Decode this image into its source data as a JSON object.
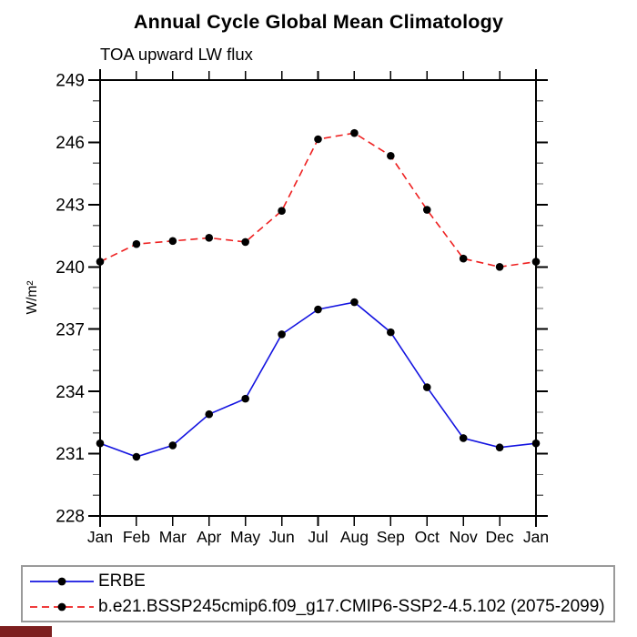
{
  "chart_data": {
    "type": "line",
    "title": "Annual Cycle Global Mean Climatology",
    "subtitle": "TOA upward LW flux",
    "ylabel": "W/m²",
    "xlabel": "",
    "ylim": [
      228,
      249
    ],
    "ytick_major": 3,
    "ytick_minor": 1,
    "ytick_labels": [
      "228",
      "231",
      "234",
      "237",
      "240",
      "243",
      "246",
      "249"
    ],
    "grid": false,
    "legend_position": "bottom",
    "categories": [
      "Jan",
      "Feb",
      "Mar",
      "Apr",
      "May",
      "Jun",
      "Jul",
      "Aug",
      "Sep",
      "Oct",
      "Nov",
      "Dec",
      "Jan"
    ],
    "series": [
      {
        "name": "ERBE",
        "style": "solid",
        "color": "#1414e0",
        "marker": "circle",
        "marker_color": "#000000",
        "values": [
          231.5,
          230.85,
          231.4,
          232.9,
          233.65,
          236.75,
          237.95,
          238.3,
          236.85,
          234.2,
          231.75,
          231.3,
          231.5
        ]
      },
      {
        "name": "b.e21.BSSP245cmip6.f09_g17.CMIP6-SSP2-4.5.102 (2075-2099)",
        "style": "dashed",
        "color": "#ee2020",
        "marker": "circle",
        "marker_color": "#000000",
        "values": [
          240.25,
          241.1,
          241.25,
          241.4,
          241.2,
          242.7,
          246.15,
          246.45,
          245.35,
          242.75,
          240.4,
          240.0,
          240.25
        ]
      }
    ]
  },
  "colors": {
    "axis": "#000000",
    "minor_tick": "#666666",
    "legend_border": "#9a9a9a",
    "corner_tag": "#7d1f1f"
  }
}
